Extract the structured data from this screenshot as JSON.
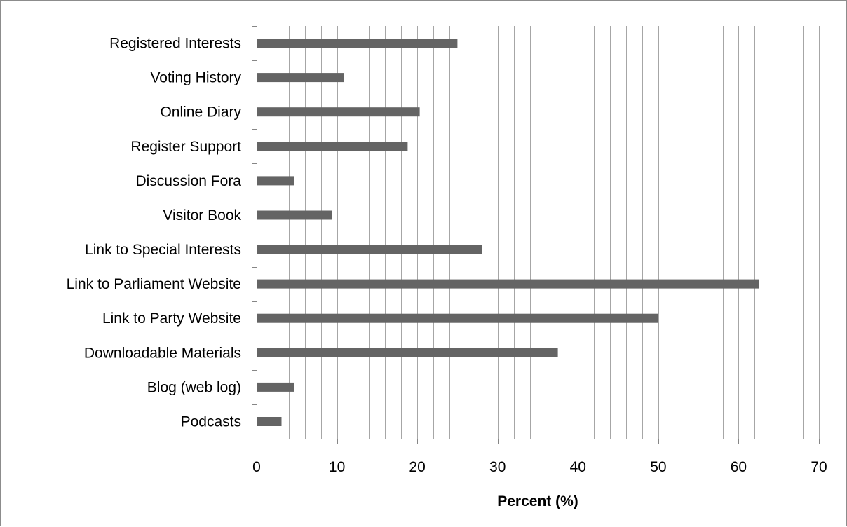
{
  "chart_data": {
    "type": "bar",
    "orientation": "horizontal",
    "categories": [
      "Registered Interests",
      "Voting History",
      "Online Diary",
      "Register Support",
      "Discussion Fora",
      "Visitor Book",
      "Link to Special Interests",
      "Link to Parliament Website",
      "Link to Party Website",
      "Downloadable Materials",
      "Blog (web log)",
      "Podcasts"
    ],
    "values": [
      25,
      10.9,
      20.3,
      18.8,
      4.7,
      9.4,
      28.1,
      62.5,
      50,
      37.5,
      4.7,
      3.1
    ],
    "xlabel": "Percent (%)",
    "ylabel": "",
    "xlim": [
      0,
      70
    ],
    "xticks": [
      "0",
      "10",
      "20",
      "30",
      "40",
      "50",
      "60",
      "70"
    ],
    "minor_grid_step": 2,
    "grid": true,
    "legend": "none",
    "colors": {
      "bar": "#646464",
      "grid": "#a6a6a6",
      "axis": "#868686",
      "frame": "#8c8c8c"
    }
  }
}
